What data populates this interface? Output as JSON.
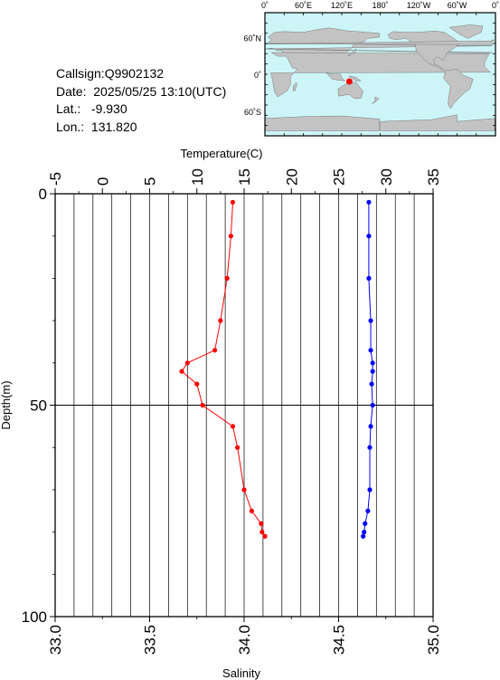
{
  "info": {
    "callsign": "Callsign:Q9902132",
    "date": "Date:  2025/05/25 13:10(UTC)",
    "lat": "Lat.:   -9.930",
    "lon": "Lon.:  131.820"
  },
  "map": {
    "top_labels": [
      "0˚",
      "60˚E",
      "120˚E",
      "180˚",
      "120˚W",
      "60˚W",
      "0˚"
    ],
    "lat_labels": [
      "60˚N",
      "0˚",
      "60˚S"
    ],
    "ocean_color": "#cdf5f8",
    "land_color": "#c3c3c3",
    "marker_color": "#ff0000",
    "marker_lat": -9.93,
    "marker_lon": 131.82
  },
  "chart_data": {
    "type": "line",
    "ylabel": "Depth(m)",
    "ylim": [
      100,
      0
    ],
    "y_ticks": [
      "0",
      "50",
      "100"
    ],
    "temperature_axis": {
      "label": "Temperature(C)",
      "range": [
        -5,
        35
      ],
      "ticks": [
        "-5",
        "0",
        "5",
        "10",
        "15",
        "20",
        "25",
        "30",
        "35"
      ]
    },
    "salinity_axis": {
      "label": "Salinity",
      "range": [
        33.0,
        35.0
      ],
      "ticks": [
        "33.0",
        "33.5",
        "34.0",
        "34.5",
        "35.0"
      ]
    },
    "grid": true,
    "series": [
      {
        "name": "Temperature",
        "axis": "temperature",
        "color": "#ff0000",
        "points": [
          [
            13.8,
            2
          ],
          [
            13.6,
            10
          ],
          [
            13.2,
            20
          ],
          [
            12.5,
            30
          ],
          [
            11.9,
            37
          ],
          [
            9.0,
            40
          ],
          [
            8.4,
            42
          ],
          [
            10.0,
            45
          ],
          [
            10.6,
            50
          ],
          [
            13.8,
            55
          ],
          [
            14.3,
            60
          ],
          [
            15.0,
            70
          ],
          [
            15.8,
            75
          ],
          [
            16.8,
            78
          ],
          [
            16.9,
            80
          ],
          [
            17.2,
            81
          ]
        ]
      },
      {
        "name": "Salinity",
        "axis": "salinity",
        "color": "#0000ff",
        "points": [
          [
            34.66,
            2
          ],
          [
            34.66,
            10
          ],
          [
            34.66,
            20
          ],
          [
            34.67,
            30
          ],
          [
            34.67,
            37
          ],
          [
            34.68,
            40
          ],
          [
            34.68,
            42
          ],
          [
            34.675,
            45
          ],
          [
            34.68,
            50
          ],
          [
            34.67,
            55
          ],
          [
            34.665,
            60
          ],
          [
            34.665,
            70
          ],
          [
            34.655,
            75
          ],
          [
            34.64,
            78
          ],
          [
            34.635,
            80
          ],
          [
            34.63,
            81
          ]
        ]
      }
    ]
  }
}
